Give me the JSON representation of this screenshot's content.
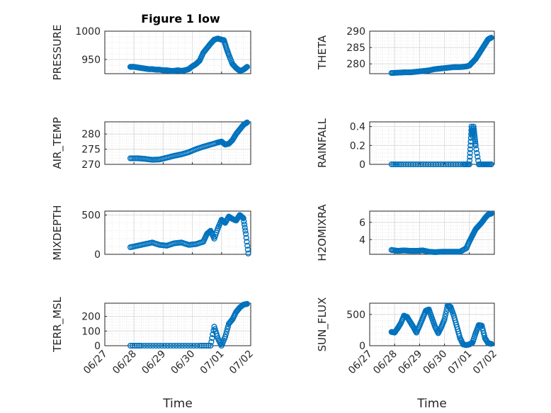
{
  "figure": {
    "title": "Figure 1 low",
    "marker_color": "#0072BD"
  },
  "x_ticks": [
    "06/27",
    "06/28",
    "06/29",
    "06/30",
    "07/01",
    "07/02"
  ],
  "x_label": "Time",
  "chart_data": [
    {
      "type": "scatter",
      "ylabel": "PRESSURE",
      "xlim": [
        "2023-06-27",
        "2023-07-02"
      ],
      "ylim": [
        925,
        1000
      ],
      "yticks": [
        950,
        1000
      ],
      "grid": true,
      "x": [
        "2023-06-27T21:00",
        "2023-06-28T00:00",
        "2023-06-28T03:00",
        "2023-06-28T06:00",
        "2023-06-28T09:00",
        "2023-06-28T12:00",
        "2023-06-28T15:00",
        "2023-06-28T18:00",
        "2023-06-28T21:00",
        "2023-06-29T00:00",
        "2023-06-29T03:00",
        "2023-06-29T06:00",
        "2023-06-29T09:00",
        "2023-06-29T12:00",
        "2023-06-29T15:00",
        "2023-06-29T18:00",
        "2023-06-29T21:00",
        "2023-06-30T00:00",
        "2023-06-30T03:00",
        "2023-06-30T06:00",
        "2023-06-30T09:00",
        "2023-06-30T12:00",
        "2023-06-30T15:00",
        "2023-06-30T18:00",
        "2023-06-30T21:00",
        "2023-07-01T00:00",
        "2023-07-01T02:00",
        "2023-07-01T04:00",
        "2023-07-01T06:00",
        "2023-07-01T09:00",
        "2023-07-01T12:00",
        "2023-07-01T15:00",
        "2023-07-01T18:00",
        "2023-07-01T21:00"
      ],
      "values": [
        937,
        937,
        936,
        935,
        934,
        933,
        933,
        932,
        932,
        931,
        931,
        930,
        930,
        931,
        930,
        931,
        933,
        938,
        942,
        948,
        962,
        970,
        978,
        985,
        987,
        985,
        984,
        970,
        958,
        942,
        935,
        930,
        932,
        937
      ]
    },
    {
      "type": "scatter",
      "ylabel": "THETA",
      "xlim": [
        "2023-06-27",
        "2023-07-02"
      ],
      "ylim": [
        277,
        290
      ],
      "yticks": [
        280,
        285,
        290
      ],
      "grid": true,
      "x": [
        "2023-06-27T21:00",
        "2023-06-28T03:00",
        "2023-06-28T09:00",
        "2023-06-28T15:00",
        "2023-06-28T21:00",
        "2023-06-29T03:00",
        "2023-06-29T09:00",
        "2023-06-29T15:00",
        "2023-06-29T21:00",
        "2023-06-30T03:00",
        "2023-06-30T09:00",
        "2023-06-30T15:00",
        "2023-06-30T21:00",
        "2023-07-01T00:00",
        "2023-07-01T03:00",
        "2023-07-01T06:00",
        "2023-07-01T09:00",
        "2023-07-01T12:00",
        "2023-07-01T15:00",
        "2023-07-01T18:00",
        "2023-07-01T21:00"
      ],
      "values": [
        277.2,
        277.3,
        277.4,
        277.4,
        277.6,
        277.8,
        278.0,
        278.4,
        278.6,
        278.8,
        279.0,
        279.0,
        279.2,
        279.5,
        280.5,
        281.5,
        283.0,
        284.5,
        286.0,
        287.5,
        288.0
      ]
    },
    {
      "type": "scatter",
      "ylabel": "AIR_TEMP",
      "xlim": [
        "2023-06-27",
        "2023-07-02"
      ],
      "ylim": [
        270,
        284
      ],
      "yticks": [
        270,
        275,
        280
      ],
      "grid": true,
      "x": [
        "2023-06-27T21:00",
        "2023-06-28T03:00",
        "2023-06-28T09:00",
        "2023-06-28T15:00",
        "2023-06-28T21:00",
        "2023-06-29T03:00",
        "2023-06-29T09:00",
        "2023-06-29T15:00",
        "2023-06-29T21:00",
        "2023-06-30T03:00",
        "2023-06-30T09:00",
        "2023-06-30T15:00",
        "2023-06-30T21:00",
        "2023-07-01T00:00",
        "2023-07-01T03:00",
        "2023-07-01T06:00",
        "2023-07-01T09:00",
        "2023-07-01T12:00",
        "2023-07-01T15:00",
        "2023-07-01T18:00",
        "2023-07-01T21:00"
      ],
      "values": [
        272.0,
        272.0,
        271.8,
        271.5,
        271.6,
        272.2,
        272.8,
        273.3,
        274.0,
        275.0,
        275.8,
        276.5,
        277.2,
        277.5,
        276.5,
        276.8,
        278.0,
        280.0,
        281.5,
        283.0,
        283.8
      ]
    },
    {
      "type": "scatter",
      "ylabel": "RAINFALL",
      "xlim": [
        "2023-06-27",
        "2023-07-02"
      ],
      "ylim": [
        0,
        0.45
      ],
      "yticks": [
        0,
        0.2,
        0.4
      ],
      "grid": true,
      "x": [
        "2023-06-27T21:00",
        "2023-06-28T06:00",
        "2023-06-28T18:00",
        "2023-06-29T06:00",
        "2023-06-29T18:00",
        "2023-06-30T06:00",
        "2023-06-30T18:00",
        "2023-07-01T00:00",
        "2023-07-01T01:00",
        "2023-07-01T02:00",
        "2023-07-01T03:00",
        "2023-07-01T04:00",
        "2023-07-01T05:00",
        "2023-07-01T06:00",
        "2023-07-01T09:00",
        "2023-07-01T15:00",
        "2023-07-01T21:00"
      ],
      "values": [
        0,
        0,
        0,
        0,
        0,
        0,
        0,
        0,
        0.2,
        0.4,
        0.3,
        0.4,
        0.3,
        0.2,
        0,
        0,
        0
      ]
    },
    {
      "type": "scatter",
      "ylabel": "MIXDEPTH",
      "xlim": [
        "2023-06-27",
        "2023-07-02"
      ],
      "ylim": [
        0,
        550
      ],
      "yticks": [
        0,
        500
      ],
      "grid": true,
      "x": [
        "2023-06-27T21:00",
        "2023-06-28T03:00",
        "2023-06-28T09:00",
        "2023-06-28T15:00",
        "2023-06-28T21:00",
        "2023-06-29T03:00",
        "2023-06-29T09:00",
        "2023-06-29T15:00",
        "2023-06-29T21:00",
        "2023-06-30T03:00",
        "2023-06-30T09:00",
        "2023-06-30T12:00",
        "2023-06-30T15:00",
        "2023-06-30T18:00",
        "2023-06-30T21:00",
        "2023-07-01T00:00",
        "2023-07-01T03:00",
        "2023-07-01T06:00",
        "2023-07-01T09:00",
        "2023-07-01T12:00",
        "2023-07-01T15:00",
        "2023-07-01T18:00",
        "2023-07-01T20:00",
        "2023-07-01T22:00"
      ],
      "values": [
        90,
        110,
        130,
        150,
        120,
        110,
        140,
        150,
        120,
        130,
        160,
        260,
        300,
        200,
        330,
        440,
        400,
        480,
        450,
        430,
        500,
        460,
        260,
        10
      ]
    },
    {
      "type": "scatter",
      "ylabel": "H2OMIXRA",
      "xlim": [
        "2023-06-27",
        "2023-07-02"
      ],
      "ylim": [
        2.3,
        7.3
      ],
      "yticks": [
        4,
        6
      ],
      "grid": true,
      "x": [
        "2023-06-27T21:00",
        "2023-06-28T03:00",
        "2023-06-28T09:00",
        "2023-06-28T15:00",
        "2023-06-28T21:00",
        "2023-06-29T03:00",
        "2023-06-29T09:00",
        "2023-06-29T15:00",
        "2023-06-29T21:00",
        "2023-06-30T03:00",
        "2023-06-30T09:00",
        "2023-06-30T15:00",
        "2023-06-30T21:00",
        "2023-07-01T00:00",
        "2023-07-01T03:00",
        "2023-07-01T06:00",
        "2023-07-01T09:00",
        "2023-07-01T12:00",
        "2023-07-01T15:00",
        "2023-07-01T18:00",
        "2023-07-01T21:00"
      ],
      "values": [
        2.8,
        2.7,
        2.75,
        2.7,
        2.7,
        2.75,
        2.6,
        2.55,
        2.6,
        2.6,
        2.6,
        2.6,
        3.0,
        3.8,
        4.5,
        5.2,
        5.6,
        6.0,
        6.5,
        6.9,
        7.0
      ]
    },
    {
      "type": "scatter",
      "ylabel": "TERR_MSL",
      "xlim": [
        "2023-06-27",
        "2023-07-02"
      ],
      "ylim": [
        0,
        290
      ],
      "yticks": [
        0,
        100,
        200
      ],
      "grid": true,
      "x": [
        "2023-06-27T21:00",
        "2023-06-28T06:00",
        "2023-06-28T18:00",
        "2023-06-29T06:00",
        "2023-06-29T18:00",
        "2023-06-30T06:00",
        "2023-06-30T15:00",
        "2023-06-30T18:00",
        "2023-06-30T21:00",
        "2023-07-01T00:00",
        "2023-07-01T03:00",
        "2023-07-01T06:00",
        "2023-07-01T09:00",
        "2023-07-01T12:00",
        "2023-07-01T15:00",
        "2023-07-01T18:00",
        "2023-07-01T21:00"
      ],
      "values": [
        0,
        0,
        0,
        0,
        0,
        0,
        0,
        130,
        50,
        0,
        60,
        150,
        180,
        230,
        260,
        280,
        285
      ]
    },
    {
      "type": "scatter",
      "ylabel": "SUN_FLUX",
      "xlim": [
        "2023-06-27",
        "2023-07-02"
      ],
      "ylim": [
        0,
        680
      ],
      "yticks": [
        0,
        500
      ],
      "grid": true,
      "x": [
        "2023-06-27T21:00",
        "2023-06-28T00:00",
        "2023-06-28T03:00",
        "2023-06-28T06:00",
        "2023-06-28T09:00",
        "2023-06-28T12:00",
        "2023-06-28T15:00",
        "2023-06-28T18:00",
        "2023-06-28T21:00",
        "2023-06-29T00:00",
        "2023-06-29T03:00",
        "2023-06-29T06:00",
        "2023-06-29T09:00",
        "2023-06-29T12:00",
        "2023-06-29T15:00",
        "2023-06-29T18:00",
        "2023-06-29T21:00",
        "2023-06-30T00:00",
        "2023-06-30T03:00",
        "2023-06-30T06:00",
        "2023-06-30T09:00",
        "2023-06-30T12:00",
        "2023-06-30T15:00",
        "2023-06-30T18:00",
        "2023-06-30T21:00",
        "2023-07-01T00:00",
        "2023-07-01T03:00",
        "2023-07-01T06:00",
        "2023-07-01T09:00",
        "2023-07-01T12:00",
        "2023-07-01T15:00",
        "2023-07-01T18:00",
        "2023-07-01T21:00"
      ],
      "values": [
        220,
        210,
        280,
        360,
        480,
        460,
        380,
        300,
        210,
        320,
        440,
        560,
        580,
        440,
        300,
        200,
        300,
        420,
        640,
        620,
        480,
        300,
        120,
        20,
        10,
        20,
        50,
        200,
        330,
        320,
        120,
        40,
        30
      ]
    }
  ]
}
